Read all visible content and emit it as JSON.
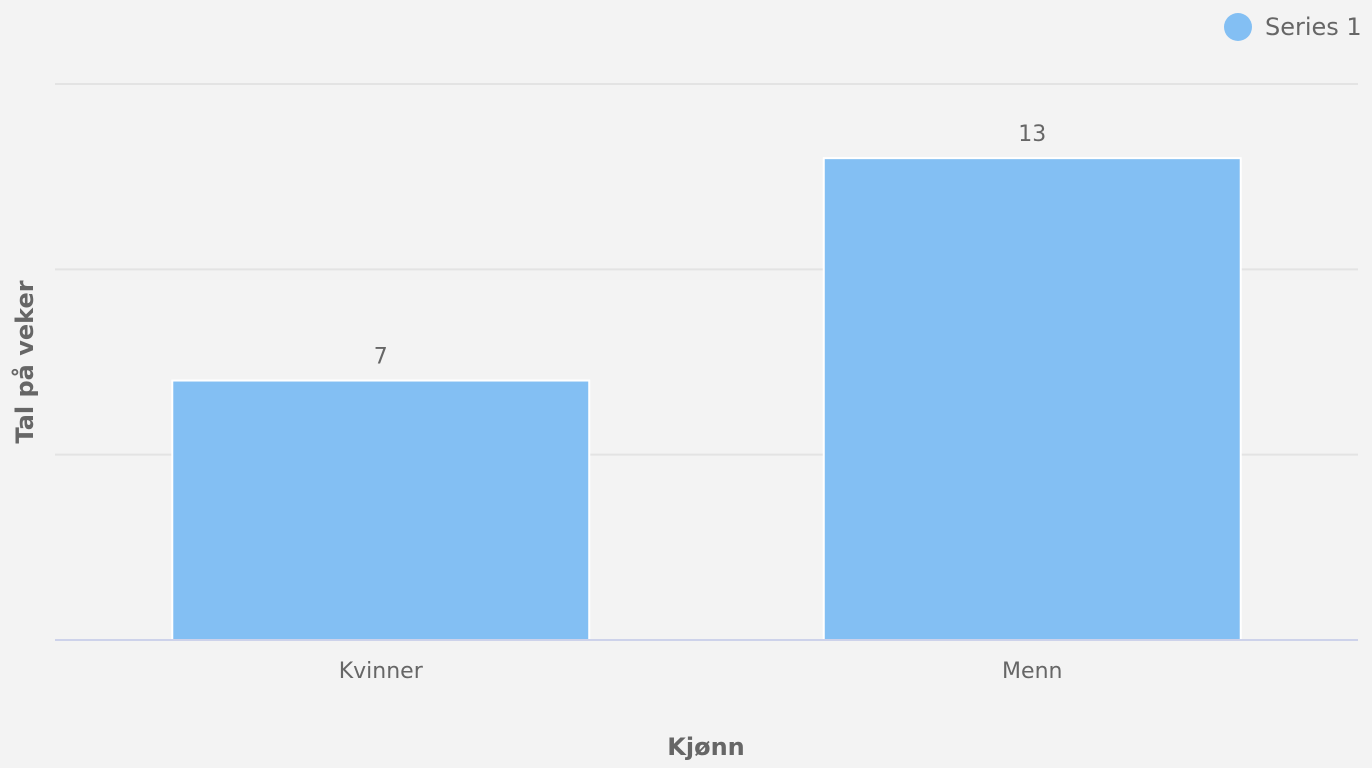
{
  "chart_data": {
    "type": "bar",
    "categories": [
      "Kvinner",
      "Menn"
    ],
    "series": [
      {
        "name": "Series 1",
        "color": "#83bff3",
        "values": [
          7,
          13
        ]
      }
    ],
    "x_label": "Kjønn",
    "y_label": "Tal på veker",
    "ylim": [
      0,
      15
    ],
    "yticks": [
      0,
      5,
      10,
      15
    ],
    "grid": true,
    "legend": "top-right"
  }
}
